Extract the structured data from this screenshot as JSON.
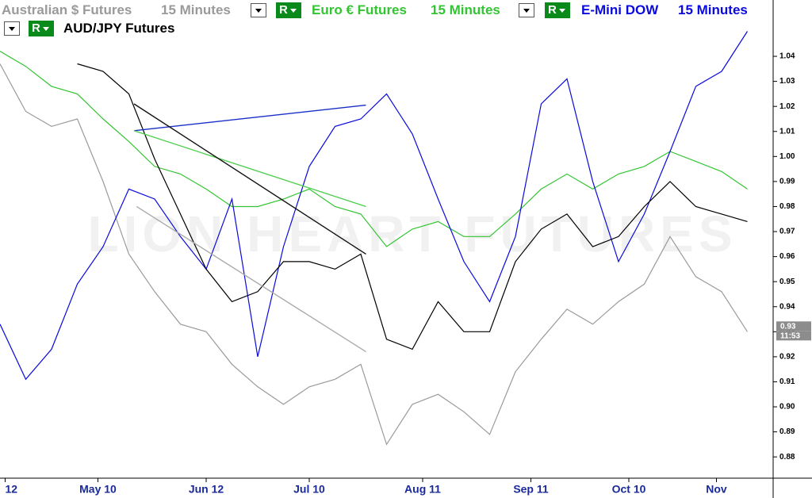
{
  "chart_data": {
    "type": "line",
    "button_label": "R",
    "watermark": "LION HEART FUTURES",
    "x": [
      0,
      5,
      10,
      15,
      20,
      25,
      30,
      35,
      40,
      45,
      50,
      55,
      60,
      65,
      70,
      75,
      80,
      85,
      90,
      95,
      100,
      105,
      110,
      115,
      120,
      125,
      130,
      135,
      140,
      145
    ],
    "series": [
      {
        "name": "Australian $ Futures",
        "interval": "15 Minutes",
        "color": "#9a9a9a",
        "values": [
          1.037,
          1.018,
          1.012,
          1.015,
          0.99,
          0.961,
          0.946,
          0.933,
          0.93,
          0.917,
          0.908,
          0.901,
          0.908,
          0.911,
          0.917,
          0.885,
          0.901,
          0.905,
          0.898,
          0.889,
          0.914,
          0.927,
          0.939,
          0.933,
          0.942,
          0.949,
          0.968,
          0.952,
          0.946,
          0.93
        ]
      },
      {
        "name": "Euro € Futures",
        "interval": "15 Minutes",
        "color": "#33c433",
        "values": [
          1.042,
          1.036,
          1.028,
          1.025,
          1.015,
          1.006,
          0.996,
          0.993,
          0.987,
          0.98,
          0.98,
          0.983,
          0.987,
          0.98,
          0.977,
          0.964,
          0.971,
          0.974,
          0.968,
          0.968,
          0.977,
          0.987,
          0.993,
          0.987,
          0.993,
          0.996,
          1.002,
          0.998,
          0.994,
          0.987
        ]
      },
      {
        "name": "E-Mini DOW",
        "interval": "15 Minutes",
        "color": "#0a0adc",
        "values": [
          0.933,
          0.911,
          0.923,
          0.949,
          0.964,
          0.987,
          0.983,
          0.968,
          0.955,
          0.983,
          0.92,
          0.964,
          0.996,
          1.012,
          1.015,
          1.025,
          1.009,
          0.983,
          0.958,
          0.942,
          0.968,
          1.021,
          1.031,
          0.99,
          0.958,
          0.977,
          1.002,
          1.028,
          1.034,
          1.05
        ]
      },
      {
        "name": "AUD/JPY Futures",
        "color": "#000000",
        "values": [
          null,
          null,
          null,
          1.037,
          1.034,
          1.025,
          0.999,
          0.977,
          0.955,
          0.942,
          0.946,
          0.958,
          0.958,
          0.955,
          0.961,
          0.927,
          0.923,
          0.942,
          0.93,
          0.93,
          0.958,
          0.971,
          0.977,
          0.964,
          0.968,
          0.98,
          0.99,
          0.98,
          0.977,
          0.974
        ]
      }
    ],
    "drawings": [
      {
        "color": "#1a2fc8",
        "x": [
          26,
          71
        ],
        "y": [
          1.0103,
          1.0205
        ]
      },
      {
        "color": "#55d055",
        "x": [
          26,
          71
        ],
        "y": [
          1.0103,
          0.98
        ]
      },
      {
        "color": "#111111",
        "x": [
          26,
          71
        ],
        "y": [
          1.021,
          0.961
        ]
      },
      {
        "color": "#aaaaaa",
        "x": [
          26.5,
          71
        ],
        "y": [
          0.98,
          0.922
        ]
      }
    ],
    "xlim": [
      0,
      150
    ],
    "xticks": [
      {
        "value": 1,
        "label": "12"
      },
      {
        "value": 19,
        "label": "May 10"
      },
      {
        "value": 40,
        "label": "Jun 12"
      },
      {
        "value": 60,
        "label": "Jul 10"
      },
      {
        "value": 82,
        "label": "Aug 11"
      },
      {
        "value": 103,
        "label": "Sep 11"
      },
      {
        "value": 122,
        "label": "Oct 10"
      },
      {
        "value": 139,
        "label": "Nov"
      }
    ],
    "ylim": [
      0.8715,
      1.0625
    ],
    "yticks": [
      0.88,
      0.89,
      {
        "value": 0.9,
        "label": "0.90"
      },
      0.91,
      0.92,
      0.93,
      0.94,
      0.95,
      0.96,
      0.97,
      0.98,
      0.99,
      {
        "value": 1.0,
        "label": "1.00"
      },
      1.01,
      1.02,
      1.03,
      1.04
    ],
    "last_value": 0.93,
    "time_label": "11:53"
  }
}
